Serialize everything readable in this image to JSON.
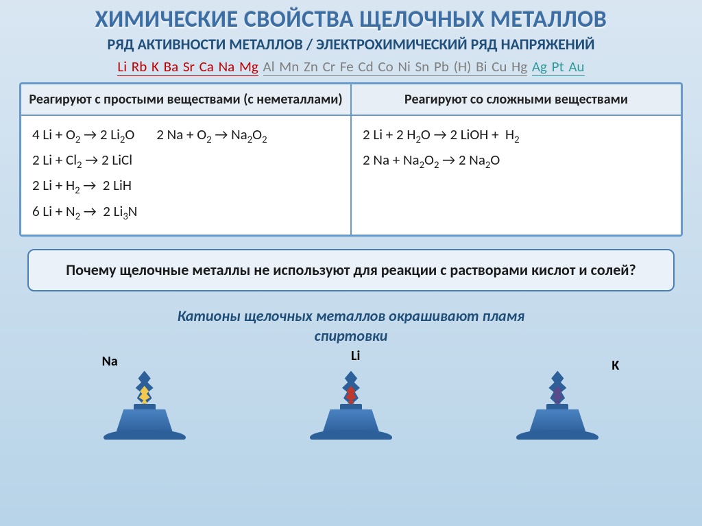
{
  "title": "ХИМИЧЕСКИЕ СВОЙСТВА ЩЕЛОЧНЫХ МЕТАЛЛОВ",
  "subtitle": "РЯД АКТИВНОСТИ МЕТАЛЛОВ / ЭЛЕКТРОХИМИЧЕСКИЙ РЯД НАПРЯЖЕНИЙ",
  "activity_series": {
    "red": "Li Rb K Ba Sr Ca Na Mg",
    "gray1": "Al Mn Zn Cr Fe Cd Co Ni Sn Pb (H)  Bi Cu Hg",
    "teal": "Ag Pt Au"
  },
  "table": {
    "head_left": "Реагируют с простыми веществами (с неметаллами)",
    "head_right": "Реагируют со сложными веществами",
    "left_equations": [
      "4 Li + O₂ → 2 Li₂O",
      "2 Na + O₂ → Na₂O₂",
      "2 Li + Cl₂ → 2 LiCl",
      "2 Li + H₂ →  2 LiH",
      "6 Li + N₂ →  2 Li₃N"
    ],
    "right_equations": [
      "2 Li + 2 H₂O → 2 LiOH +  H₂",
      "2 Na + Na₂O₂ → 2 Na₂O"
    ]
  },
  "question": "Почему  щелочные металлы не используют для реакции с растворами кислот и солей?",
  "flame_caption_line1": "Катионы щелочных металлов окрашивают пламя",
  "flame_caption_line2": "спиртовки",
  "flames": [
    {
      "label": "Na",
      "color": "#f2c94c"
    },
    {
      "label": "Li",
      "color": "#c0392b"
    },
    {
      "label": "K",
      "color": "#5a4a8a"
    }
  ],
  "colors": {
    "title": "#3a6ea5",
    "subtitle": "#1f4e79",
    "border": "#6699cc",
    "box_bg": "#eaf1f8",
    "burner": "#2d5f99"
  }
}
